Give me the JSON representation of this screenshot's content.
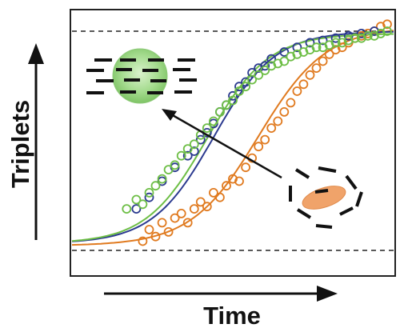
{
  "chart_data": {
    "type": "scatter",
    "xlabel": "Time",
    "ylabel": "Triplets",
    "xlim": [
      0,
      100
    ],
    "ylim": [
      0,
      100
    ],
    "grid": false,
    "reference_lines": [
      {
        "orientation": "horizontal",
        "y": 95,
        "style": "dashed"
      },
      {
        "orientation": "horizontal",
        "y": 0,
        "style": "dashed"
      }
    ],
    "series": [
      {
        "color": "#E07A1F",
        "marker": "open-circle",
        "fit": {
          "model": "sigmoid",
          "min": 2,
          "max": 97,
          "midpoint": 58,
          "slope": 10.5
        },
        "x": [
          22,
          24,
          26,
          28,
          30,
          32,
          34,
          36,
          38,
          40,
          42,
          44,
          46,
          48,
          50,
          52,
          54,
          56,
          58,
          60,
          62,
          64,
          66,
          68,
          70,
          72,
          74,
          76,
          78,
          80,
          82,
          84,
          86,
          88,
          90,
          92,
          94,
          96,
          98
        ],
        "y": [
          4,
          9,
          6,
          12,
          8,
          14,
          16,
          12,
          18,
          21,
          19,
          25,
          23,
          28,
          31,
          30,
          36,
          40,
          45,
          48,
          53,
          56,
          60,
          64,
          69,
          72,
          76,
          79,
          82,
          85,
          87,
          88,
          90,
          92,
          93,
          94,
          95,
          97,
          98
        ]
      },
      {
        "color": "#2B3A8F",
        "marker": "open-circle",
        "fit": {
          "model": "sigmoid",
          "min": 3,
          "max": 95,
          "midpoint": 44,
          "slope": 9.5
        },
        "x": [
          20,
          24,
          28,
          32,
          36,
          38,
          40,
          42,
          44,
          46,
          48,
          50,
          52,
          54,
          56,
          58,
          60,
          62,
          66,
          70,
          74,
          78,
          82,
          86,
          90,
          94
        ],
        "y": [
          18,
          23,
          30,
          36,
          41,
          43,
          48,
          51,
          55,
          60,
          63,
          67,
          71,
          73,
          77,
          79,
          80,
          83,
          86,
          88,
          90,
          91,
          92,
          93,
          94,
          95
        ]
      },
      {
        "color": "#6DBE45",
        "marker": "open-circle",
        "fit": {
          "model": "sigmoid",
          "min": 3,
          "max": 94,
          "midpoint": 42,
          "slope": 9.5
        },
        "x": [
          17,
          20,
          22,
          24,
          26,
          28,
          30,
          32,
          34,
          36,
          38,
          40,
          42,
          44,
          46,
          48,
          50,
          52,
          54,
          56,
          58,
          60,
          62,
          64,
          66,
          68,
          70,
          72,
          74,
          76,
          78,
          80,
          82,
          84,
          86,
          88,
          90,
          92,
          94,
          96,
          98
        ],
        "y": [
          18,
          22,
          20,
          25,
          28,
          31,
          35,
          37,
          41,
          44,
          46,
          50,
          53,
          56,
          60,
          63,
          65,
          69,
          71,
          74,
          76,
          78,
          80,
          81,
          82,
          84,
          85,
          86,
          87,
          88,
          88,
          89,
          90,
          90,
          91,
          92,
          92,
          93,
          93,
          94,
          95
        ]
      }
    ]
  },
  "illustration": {
    "green_sphere_color": "#9ED98A",
    "orange_ellipse_color": "#F0A36A",
    "arrow_color": "#111111"
  }
}
